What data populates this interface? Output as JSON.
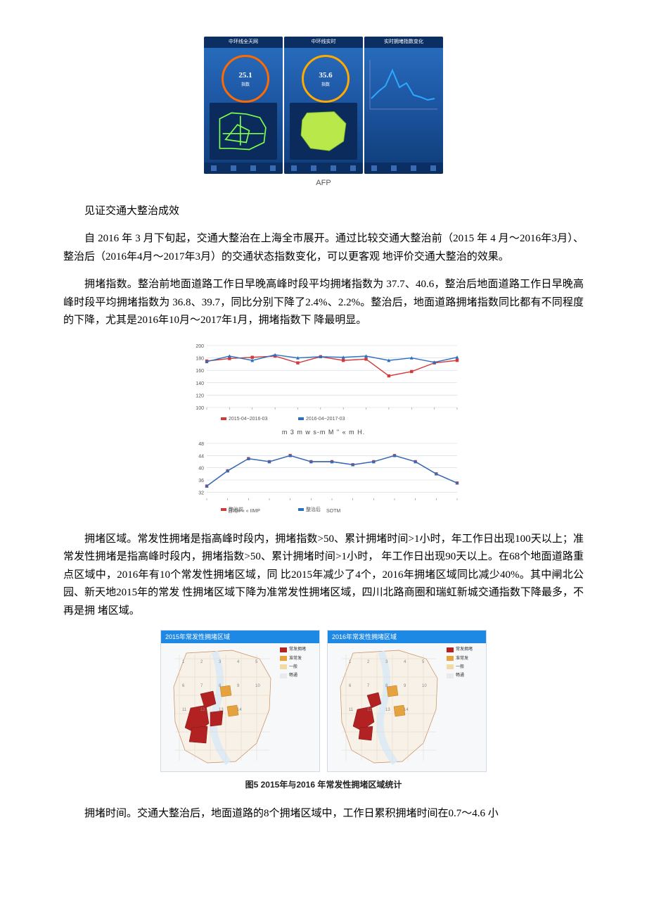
{
  "fig1": {
    "afp_label": "AFP",
    "panels": [
      {
        "gauge_value": "25.1",
        "gauge_unit": "指数",
        "header": "中环线全天网"
      },
      {
        "gauge_value": "35.6",
        "gauge_unit": "指数",
        "header": "中环线实时"
      },
      {
        "header": "实时拥堵指数变化"
      }
    ],
    "line_points": "4,60 14,50 24,42 34,20 44,44 54,38 64,55 74,58 84,62 94,60",
    "colors": {
      "bg_grad_top": "#2a6fc0",
      "bg_grad_bot": "#0e3c78",
      "accent": "#ff6a00",
      "route": "#7dff4a",
      "shape": "#b9e84a",
      "line": "#2da8ff"
    }
  },
  "text": {
    "h1": "见证交通大整治成效",
    "p1": "自 2016 年 3 月下旬起，交通大整治在上海全市展开。通过比较交通大整治前（2015 年 4 月～2016年3月）、整治后（2016年4月～2017年3月）的交通状态指数变化，可以更客观 地评价交通大整治的效果。",
    "p2": "拥堵指数。整治前地面道路工作日早晚高峰时段平均拥堵指数为 37.7、40.6，整治后地面道路工作日早晚高峰时段平均拥堵指数为 36.8、39.7，同比分别下降了2.4%、2.2%。整治后，地面道路拥堵指数同比都有不同程度的下降，尤其是2016年10月～2017年1月，拥堵指数下 降最明显。",
    "xlabel1": "m 3 m w          s-m M \" « m          H.",
    "p3": "拥堵区域。常发性拥堵是指高峰时段内，拥堵指数>50、累计拥堵时间>1小时，年工作日出现100天以上；准常发性拥堵是指高峰时段内，拥堵指数>50、累计拥堵时间>1小时， 年工作日出现90天以上。在68个地面道路重点区域中，2016年有10个常发性拥堵区域，同 比2015年减少了4个，2016年拥堵区域同比减少40%。其中闸北公园、新天地2015年的常发 性拥堵区域下降为准常发性拥堵区域，四川北路商圈和瑞虹新城交通指数下降最多，不再是拥 堵区域。",
    "map_caption": "图5  2015年与2016 年常发性拥堵区域统计",
    "p4": "拥堵时间。交通大整治后，地面道路的8个拥堵区域中，工作日累积拥堵时间在0.7～4.6 小"
  },
  "chart_top": {
    "type": "line",
    "ylim": [
      100,
      200
    ],
    "yticks": [
      200,
      180,
      160,
      140,
      120,
      100
    ],
    "series": [
      {
        "name": "2015-04~2016-03",
        "color": "#d23a3a",
        "marker": "square",
        "values": [
          175,
          179,
          181,
          183,
          172,
          182,
          176,
          178,
          151,
          158,
          172,
          176
        ]
      },
      {
        "name": "2016-04~2017-03",
        "color": "#2a6fc0",
        "marker": "triangle",
        "values": [
          174,
          183,
          176,
          185,
          180,
          182,
          181,
          183,
          176,
          180,
          173,
          181
        ]
      }
    ],
    "grid_color": "#cfd6dd",
    "background_color": "#ffffff",
    "title_fontsize": 9
  },
  "chart_bottom": {
    "type": "line",
    "ylim": [
      30,
      48
    ],
    "yticks": [
      48,
      44,
      40,
      36,
      32
    ],
    "series": [
      {
        "name": "整治前",
        "color": "#d23a3a",
        "marker": "square",
        "values": [
          34,
          39,
          43,
          42,
          44,
          42,
          42,
          41,
          42,
          44,
          42,
          38,
          35
        ]
      },
      {
        "name": "整治后",
        "color": "#2a6fc0",
        "marker": "triangle",
        "values": [
          34,
          39,
          43,
          42,
          44,
          42,
          42,
          41,
          42,
          44,
          42,
          38,
          35
        ]
      }
    ],
    "legend_labels": [
      "日均x-« « IIMP",
      "SOTM"
    ],
    "grid_color": "#cfd6dd",
    "background_color": "#ffffff"
  },
  "maps": {
    "header_2015": "2015年常发性拥堵区域",
    "header_2016": "2016年常发性拥堵区域",
    "legend": [
      {
        "color": "#b22222",
        "label": "常发拥堵"
      },
      {
        "color": "#e6a23c",
        "label": "准常发"
      },
      {
        "color": "#f3d9a4",
        "label": "一般"
      },
      {
        "color": "#eaeaea",
        "label": "畅通"
      }
    ],
    "outline_color": "#c98b5a",
    "water_color": "#dceaf5"
  }
}
